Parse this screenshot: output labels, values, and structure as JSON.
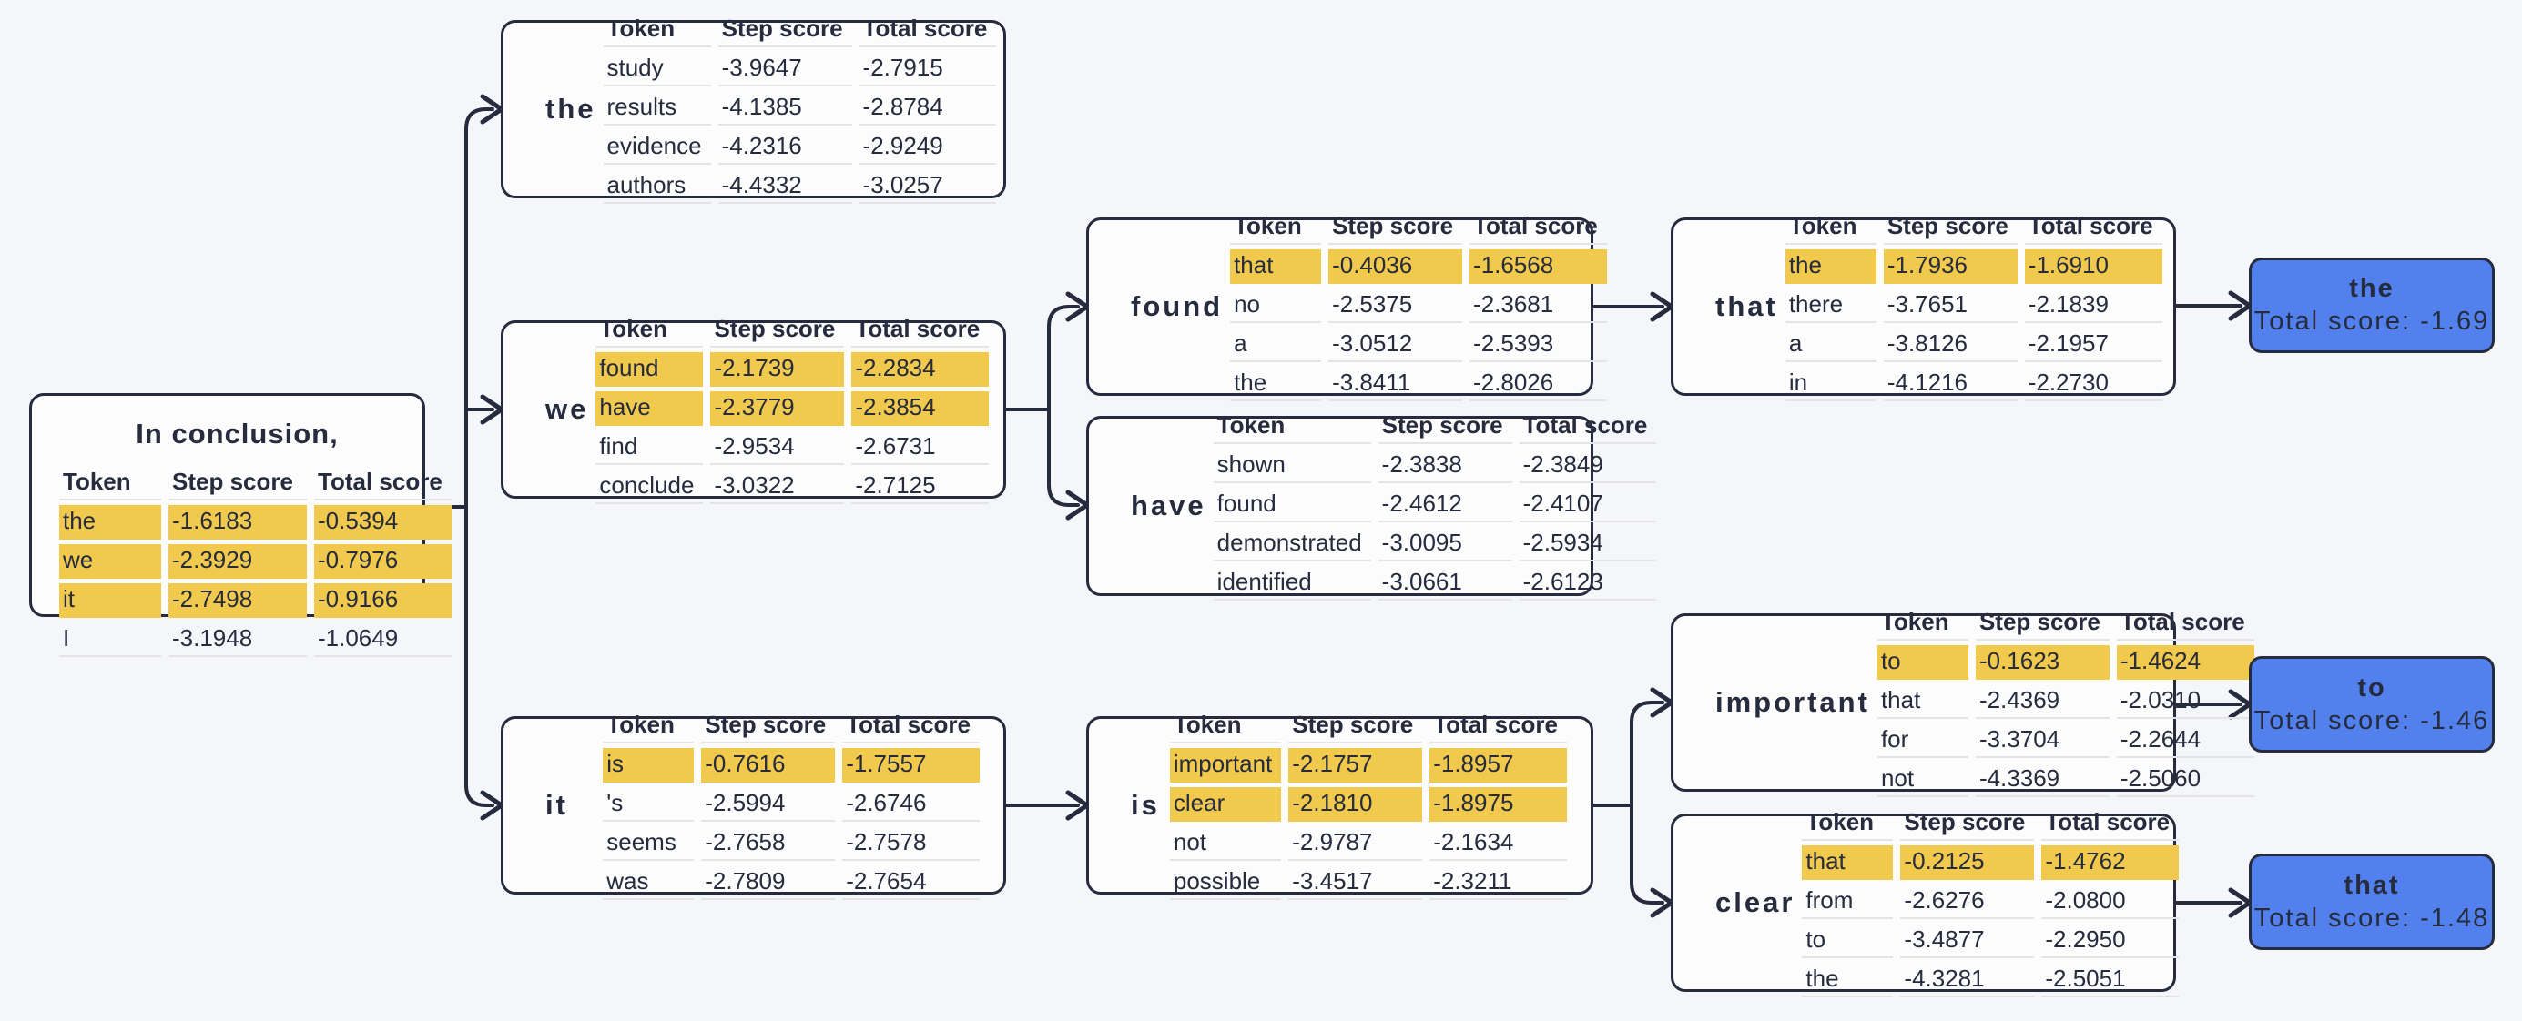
{
  "palette": {
    "background": "#f5f6fa",
    "ink": "#262b3d",
    "highlight": "#f0c94d",
    "final_blue": "#5280ec",
    "divider": "#e3e3e8"
  },
  "table_headers": [
    "Token",
    "Step score",
    "Total score"
  ],
  "root": {
    "title": "In conclusion,",
    "rows": [
      {
        "token": "the",
        "step": "-1.6183",
        "total": "-0.5394",
        "highlight": true
      },
      {
        "token": "we",
        "step": "-2.3929",
        "total": "-0.7976",
        "highlight": true
      },
      {
        "token": "it",
        "step": "-2.7498",
        "total": "-0.9166",
        "highlight": true
      },
      {
        "token": "I",
        "step": "-3.1948",
        "total": "-1.0649",
        "highlight": false
      }
    ]
  },
  "nodes": [
    {
      "label": "the",
      "rows": [
        {
          "token": "study",
          "step": "-3.9647",
          "total": "-2.7915",
          "highlight": false
        },
        {
          "token": "results",
          "step": "-4.1385",
          "total": "-2.8784",
          "highlight": false
        },
        {
          "token": "evidence",
          "step": "-4.2316",
          "total": "-2.9249",
          "highlight": false
        },
        {
          "token": "authors",
          "step": "-4.4332",
          "total": "-3.0257",
          "highlight": false
        }
      ]
    },
    {
      "label": "we",
      "rows": [
        {
          "token": "found",
          "step": "-2.1739",
          "total": "-2.2834",
          "highlight": true
        },
        {
          "token": "have",
          "step": "-2.3779",
          "total": "-2.3854",
          "highlight": true
        },
        {
          "token": "find",
          "step": "-2.9534",
          "total": "-2.6731",
          "highlight": false
        },
        {
          "token": "conclude",
          "step": "-3.0322",
          "total": "-2.7125",
          "highlight": false
        }
      ]
    },
    {
      "label": "it",
      "rows": [
        {
          "token": "is",
          "step": "-0.7616",
          "total": "-1.7557",
          "highlight": true
        },
        {
          "token": "'s",
          "step": "-2.5994",
          "total": "-2.6746",
          "highlight": false
        },
        {
          "token": "seems",
          "step": "-2.7658",
          "total": "-2.7578",
          "highlight": false
        },
        {
          "token": "was",
          "step": "-2.7809",
          "total": "-2.7654",
          "highlight": false
        }
      ]
    },
    {
      "label": "found",
      "rows": [
        {
          "token": "that",
          "step": "-0.4036",
          "total": "-1.6568",
          "highlight": true
        },
        {
          "token": "no",
          "step": "-2.5375",
          "total": "-2.3681",
          "highlight": false
        },
        {
          "token": "a",
          "step": "-3.0512",
          "total": "-2.5393",
          "highlight": false
        },
        {
          "token": "the",
          "step": "-3.8411",
          "total": "-2.8026",
          "highlight": false
        }
      ]
    },
    {
      "label": "have",
      "rows": [
        {
          "token": "shown",
          "step": "-2.3838",
          "total": "-2.3849",
          "highlight": false
        },
        {
          "token": "found",
          "step": "-2.4612",
          "total": "-2.4107",
          "highlight": false
        },
        {
          "token": "demonstrated",
          "step": "-3.0095",
          "total": "-2.5934",
          "highlight": false
        },
        {
          "token": "identified",
          "step": "-3.0661",
          "total": "-2.6123",
          "highlight": false
        }
      ]
    },
    {
      "label": "is",
      "rows": [
        {
          "token": "important",
          "step": "-2.1757",
          "total": "-1.8957",
          "highlight": true
        },
        {
          "token": "clear",
          "step": "-2.1810",
          "total": "-1.8975",
          "highlight": true
        },
        {
          "token": "not",
          "step": "-2.9787",
          "total": "-2.1634",
          "highlight": false
        },
        {
          "token": "possible",
          "step": "-3.4517",
          "total": "-2.3211",
          "highlight": false
        }
      ]
    },
    {
      "label": "that",
      "rows": [
        {
          "token": "the",
          "step": "-1.7936",
          "total": "-1.6910",
          "highlight": true
        },
        {
          "token": "there",
          "step": "-3.7651",
          "total": "-2.1839",
          "highlight": false
        },
        {
          "token": "a",
          "step": "-3.8126",
          "total": "-2.1957",
          "highlight": false
        },
        {
          "token": "in",
          "step": "-4.1216",
          "total": "-2.2730",
          "highlight": false
        }
      ]
    },
    {
      "label": "important",
      "rows": [
        {
          "token": "to",
          "step": "-0.1623",
          "total": "-1.4624",
          "highlight": true
        },
        {
          "token": "that",
          "step": "-2.4369",
          "total": "-2.0310",
          "highlight": false
        },
        {
          "token": "for",
          "step": "-3.3704",
          "total": "-2.2644",
          "highlight": false
        },
        {
          "token": "not",
          "step": "-4.3369",
          "total": "-2.5060",
          "highlight": false
        }
      ]
    },
    {
      "label": "clear",
      "rows": [
        {
          "token": "that",
          "step": "-0.2125",
          "total": "-1.4762",
          "highlight": true
        },
        {
          "token": "from",
          "step": "-2.6276",
          "total": "-2.0800",
          "highlight": false
        },
        {
          "token": "to",
          "step": "-3.4877",
          "total": "-2.2950",
          "highlight": false
        },
        {
          "token": "the",
          "step": "-4.3281",
          "total": "-2.5051",
          "highlight": false
        }
      ]
    }
  ],
  "finals": [
    {
      "token": "the",
      "score": "Total score: -1.69"
    },
    {
      "token": "to",
      "score": "Total score: -1.46"
    },
    {
      "token": "that",
      "score": "Total score: -1.48"
    }
  ]
}
